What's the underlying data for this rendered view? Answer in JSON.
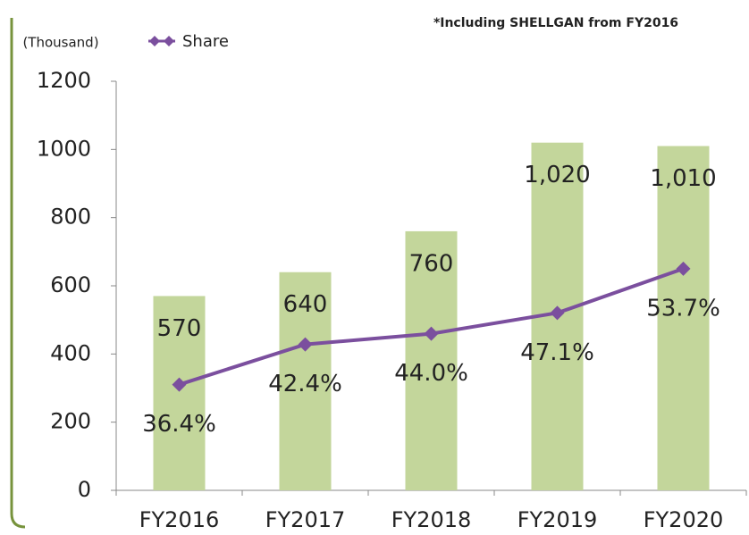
{
  "chart_data": {
    "type": "bar",
    "annotation": "*Including SHELLGAN from FY2016",
    "y_label": "(Thousand)",
    "categories": [
      "FY2016",
      "FY2017",
      "FY2018",
      "FY2019",
      "FY2020"
    ],
    "values": [
      570,
      640,
      760,
      1020,
      1010
    ],
    "value_labels": [
      "570",
      "640",
      "760",
      "1,020",
      "1,010"
    ],
    "color": "#c3d69b",
    "ylim": [
      0,
      1200
    ],
    "yticks": [
      0,
      200,
      400,
      600,
      800,
      1000,
      1200
    ],
    "y2lim": [
      20.6,
      81.7
    ],
    "series": [
      {
        "name": "Share",
        "color": "#7b4f9e",
        "axis": "y2",
        "values": [
          36.4,
          42.4,
          44.0,
          47.1,
          53.7
        ],
        "value_labels": [
          "36.4%",
          "42.4%",
          "44.0%",
          "47.1%",
          "53.7%"
        ]
      }
    ],
    "legend": "top-left"
  }
}
